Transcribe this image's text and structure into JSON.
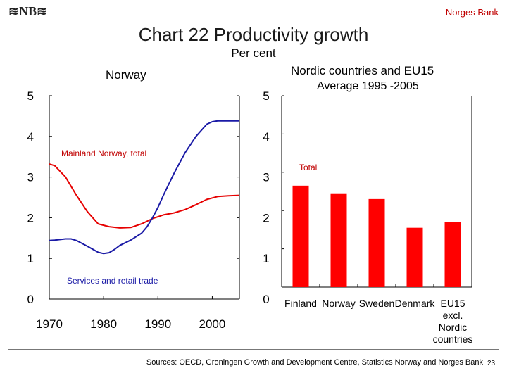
{
  "header": {
    "logo_text": "≋NB≋",
    "bank_name": "Norges Bank"
  },
  "title": "Chart 22 Productivity growth",
  "subtitle": "Per cent",
  "footer": {
    "source": "Sources: OECD, Groningen Growth and Development Centre, Statistics Norway and Norges Bank",
    "page_number": "23"
  },
  "colors": {
    "red": "#e60000",
    "blue": "#1a1aa6"
  },
  "chart_data": [
    {
      "type": "line",
      "title": "Norway",
      "xlabel": "",
      "ylabel": "",
      "xlim": [
        1970,
        2005
      ],
      "ylim": [
        0,
        5
      ],
      "x_ticks": [
        "1970",
        "1980",
        "1990",
        "2000"
      ],
      "y_ticks_left": [
        "0",
        "1",
        "2",
        "3",
        "4",
        "5"
      ],
      "y_ticks_right": [
        "0",
        "1",
        "2",
        "3",
        "4",
        "5"
      ],
      "series": [
        {
          "name": "Mainland Norway, total",
          "color": "#e60000",
          "x": [
            1970,
            1971,
            1973,
            1975,
            1977,
            1979,
            1981,
            1983,
            1985,
            1987,
            1989,
            1991,
            1993,
            1995,
            1997,
            1999,
            2001,
            2003,
            2005
          ],
          "y": [
            3.32,
            3.28,
            3.0,
            2.55,
            2.15,
            1.85,
            1.78,
            1.75,
            1.76,
            1.85,
            1.98,
            2.07,
            2.12,
            2.2,
            2.32,
            2.45,
            2.52,
            2.54,
            2.55
          ]
        },
        {
          "name": "Services and retail trade",
          "color": "#1a1aa6",
          "x": [
            1970,
            1971,
            1973,
            1974,
            1975,
            1977,
            1979,
            1980,
            1981,
            1982,
            1983,
            1985,
            1987,
            1988,
            1989,
            1990,
            1991,
            1993,
            1995,
            1997,
            1999,
            2000,
            2001,
            2003,
            2005
          ],
          "y": [
            1.44,
            1.45,
            1.48,
            1.48,
            1.44,
            1.3,
            1.15,
            1.12,
            1.14,
            1.22,
            1.32,
            1.45,
            1.62,
            1.78,
            2.0,
            2.25,
            2.55,
            3.1,
            3.6,
            4.0,
            4.3,
            4.36,
            4.38,
            4.38,
            4.38
          ]
        }
      ]
    },
    {
      "type": "bar",
      "title": "Nordic countries and EU15",
      "subtitle": "Average 1995 -2005",
      "xlabel": "",
      "ylabel": "",
      "ylim": [
        0,
        5
      ],
      "y_ticks": [
        "0",
        "1",
        "2",
        "3",
        "4",
        "5"
      ],
      "series_name": "Total",
      "color": "#ff0000",
      "categories": [
        "Finland",
        "Norway",
        "Sweden",
        "Denmark",
        "EU15 excl. Nordic countries"
      ],
      "category_lines": [
        [
          "Finland"
        ],
        [
          "Norway"
        ],
        [
          "Sweden"
        ],
        [
          "Denmark"
        ],
        [
          "EU15",
          "excl.",
          "Nordic",
          "countries"
        ]
      ],
      "values": [
        2.65,
        2.45,
        2.3,
        1.55,
        1.7
      ]
    }
  ]
}
